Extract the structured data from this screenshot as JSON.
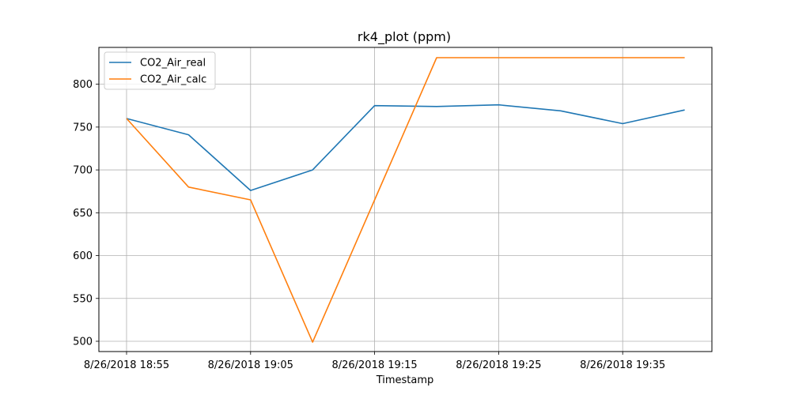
{
  "chart_data": {
    "type": "line",
    "title": "rk4_plot (ppm)",
    "xlabel": "Timestamp",
    "ylabel": "",
    "x": [
      "8/26/2018 18:55",
      "8/26/2018 19:00",
      "8/26/2018 19:05",
      "8/26/2018 19:10",
      "8/26/2018 19:15",
      "8/26/2018 19:20",
      "8/26/2018 19:25",
      "8/26/2018 19:30",
      "8/26/2018 19:35",
      "8/26/2018 19:40"
    ],
    "x_ticks": [
      "8/26/2018 18:55",
      "8/26/2018 19:05",
      "8/26/2018 19:15",
      "8/26/2018 19:25",
      "8/26/2018 19:35"
    ],
    "y_ticks": [
      500,
      550,
      600,
      650,
      700,
      750,
      800
    ],
    "ylim": [
      488,
      843
    ],
    "grid": true,
    "legend_position": "upper-left",
    "series": [
      {
        "name": "CO2_Air_real",
        "color": "#1f77b4",
        "values": [
          760,
          741,
          676,
          700,
          775,
          774,
          776,
          769,
          754,
          770
        ]
      },
      {
        "name": "CO2_Air_calc",
        "color": "#ff7f0e",
        "values": [
          760,
          680,
          665,
          499,
          665,
          831,
          831,
          831,
          831,
          831
        ]
      }
    ]
  }
}
